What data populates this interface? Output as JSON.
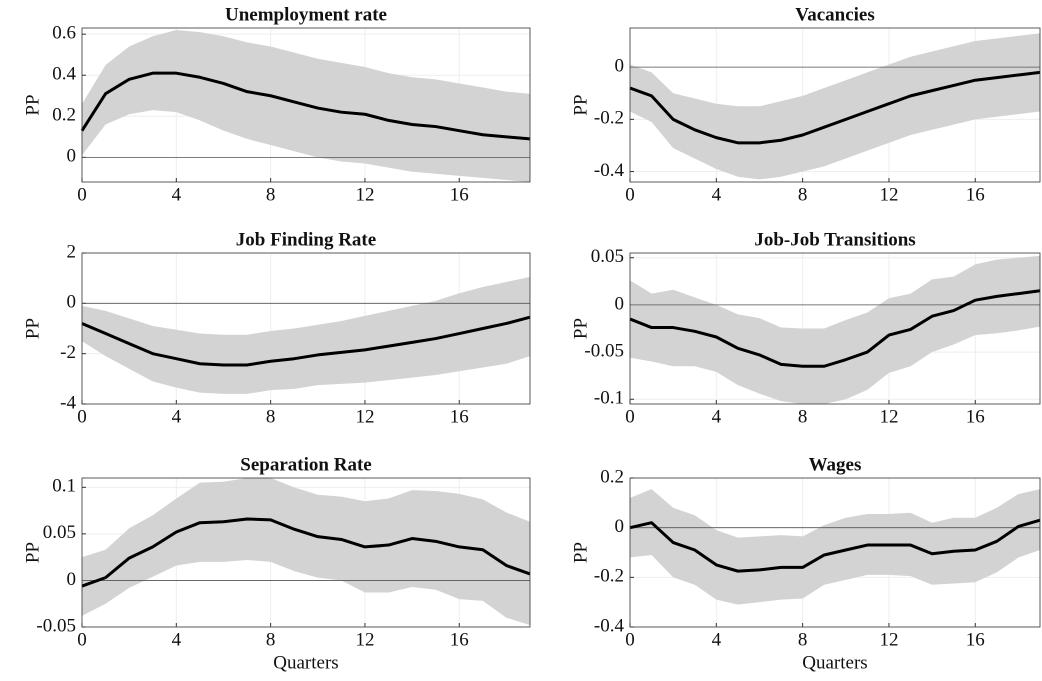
{
  "chart_data": [
    {
      "type": "line",
      "title": "Unemployment rate",
      "ylabel": "PP",
      "x": [
        0,
        1,
        2,
        3,
        4,
        5,
        6,
        7,
        8,
        9,
        10,
        11,
        12,
        13,
        14,
        15,
        16,
        17,
        18,
        19
      ],
      "series": [
        {
          "color": "#000000",
          "values": [
            0.13,
            0.31,
            0.38,
            0.41,
            0.41,
            0.39,
            0.36,
            0.32,
            0.3,
            0.27,
            0.24,
            0.22,
            0.21,
            0.18,
            0.16,
            0.15,
            0.13,
            0.11,
            0.1,
            0.09
          ]
        }
      ],
      "band": {
        "color": "#d3d3d3",
        "lower": [
          0.01,
          0.16,
          0.21,
          0.23,
          0.22,
          0.18,
          0.13,
          0.09,
          0.06,
          0.03,
          0.0,
          -0.02,
          -0.03,
          -0.05,
          -0.07,
          -0.08,
          -0.09,
          -0.1,
          -0.11,
          -0.12
        ],
        "upper": [
          0.26,
          0.45,
          0.54,
          0.59,
          0.62,
          0.61,
          0.59,
          0.56,
          0.54,
          0.51,
          0.48,
          0.46,
          0.44,
          0.41,
          0.39,
          0.38,
          0.36,
          0.34,
          0.32,
          0.31
        ]
      },
      "xlim": [
        0,
        19
      ],
      "xticks": [
        0,
        4,
        8,
        12,
        16
      ],
      "ylim": [
        -0.12,
        0.63
      ],
      "yticks": [
        0,
        0.2,
        0.4,
        0.6
      ],
      "grid": true
    },
    {
      "type": "line",
      "title": "Vacancies",
      "ylabel": "PP",
      "x": [
        0,
        1,
        2,
        3,
        4,
        5,
        6,
        7,
        8,
        9,
        10,
        11,
        12,
        13,
        14,
        15,
        16,
        17,
        18,
        19
      ],
      "series": [
        {
          "color": "#000000",
          "values": [
            -0.08,
            -0.11,
            -0.2,
            -0.24,
            -0.27,
            -0.29,
            -0.29,
            -0.28,
            -0.26,
            -0.23,
            -0.2,
            -0.17,
            -0.14,
            -0.11,
            -0.09,
            -0.07,
            -0.05,
            -0.04,
            -0.03,
            -0.02
          ]
        }
      ],
      "band": {
        "color": "#d3d3d3",
        "lower": [
          -0.17,
          -0.21,
          -0.31,
          -0.35,
          -0.39,
          -0.42,
          -0.43,
          -0.42,
          -0.4,
          -0.38,
          -0.35,
          -0.32,
          -0.29,
          -0.26,
          -0.24,
          -0.22,
          -0.2,
          -0.19,
          -0.18,
          -0.17
        ],
        "upper": [
          0.01,
          -0.02,
          -0.1,
          -0.12,
          -0.14,
          -0.15,
          -0.15,
          -0.13,
          -0.11,
          -0.08,
          -0.05,
          -0.02,
          0.01,
          0.04,
          0.06,
          0.08,
          0.1,
          0.11,
          0.12,
          0.13
        ]
      },
      "xlim": [
        0,
        19
      ],
      "xticks": [
        0,
        4,
        8,
        12,
        16
      ],
      "ylim": [
        -0.44,
        0.15
      ],
      "yticks": [
        -0.4,
        -0.2,
        0
      ],
      "grid": true
    },
    {
      "type": "line",
      "title": "Job Finding Rate",
      "ylabel": "PP",
      "x": [
        0,
        1,
        2,
        3,
        4,
        5,
        6,
        7,
        8,
        9,
        10,
        11,
        12,
        13,
        14,
        15,
        16,
        17,
        18,
        19
      ],
      "series": [
        {
          "color": "#000000",
          "values": [
            -0.8,
            -1.2,
            -1.6,
            -2.0,
            -2.2,
            -2.4,
            -2.45,
            -2.45,
            -2.3,
            -2.2,
            -2.05,
            -1.95,
            -1.85,
            -1.7,
            -1.55,
            -1.4,
            -1.2,
            -1.0,
            -0.8,
            -0.55
          ]
        }
      ],
      "band": {
        "color": "#d3d3d3",
        "lower": [
          -1.5,
          -2.1,
          -2.6,
          -3.1,
          -3.35,
          -3.55,
          -3.6,
          -3.6,
          -3.45,
          -3.4,
          -3.25,
          -3.2,
          -3.15,
          -3.05,
          -2.95,
          -2.85,
          -2.7,
          -2.55,
          -2.4,
          -2.1
        ],
        "upper": [
          -0.1,
          -0.3,
          -0.6,
          -0.9,
          -1.05,
          -1.2,
          -1.25,
          -1.25,
          -1.1,
          -1.0,
          -0.85,
          -0.7,
          -0.5,
          -0.3,
          -0.1,
          0.1,
          0.4,
          0.65,
          0.85,
          1.05
        ]
      },
      "xlim": [
        0,
        19
      ],
      "xticks": [
        0,
        4,
        8,
        12,
        16
      ],
      "ylim": [
        -4,
        2
      ],
      "yticks": [
        -4,
        -2,
        0,
        2
      ],
      "grid": true
    },
    {
      "type": "line",
      "title": "Job-Job Transitions",
      "ylabel": "PP",
      "x": [
        0,
        1,
        2,
        3,
        4,
        5,
        6,
        7,
        8,
        9,
        10,
        11,
        12,
        13,
        14,
        15,
        16,
        17,
        18,
        19
      ],
      "series": [
        {
          "color": "#000000",
          "values": [
            -0.015,
            -0.024,
            -0.024,
            -0.028,
            -0.034,
            -0.046,
            -0.053,
            -0.063,
            -0.065,
            -0.065,
            -0.058,
            -0.05,
            -0.032,
            -0.026,
            -0.012,
            -0.006,
            0.005,
            0.009,
            0.012,
            0.015
          ]
        }
      ],
      "band": {
        "color": "#d3d3d3",
        "lower": [
          -0.056,
          -0.06,
          -0.065,
          -0.065,
          -0.071,
          -0.085,
          -0.094,
          -0.102,
          -0.105,
          -0.105,
          -0.1,
          -0.09,
          -0.072,
          -0.065,
          -0.05,
          -0.042,
          -0.032,
          -0.03,
          -0.027,
          -0.023
        ],
        "upper": [
          0.026,
          0.012,
          0.016,
          0.008,
          0.0,
          -0.01,
          -0.014,
          -0.024,
          -0.025,
          -0.025,
          -0.016,
          -0.008,
          0.007,
          0.012,
          0.027,
          0.03,
          0.043,
          0.048,
          0.05,
          0.052
        ]
      },
      "xlim": [
        0,
        19
      ],
      "xticks": [
        0,
        4,
        8,
        12,
        16
      ],
      "ylim": [
        -0.105,
        0.055
      ],
      "yticks": [
        -0.1,
        -0.05,
        0,
        0.05
      ],
      "grid": true
    },
    {
      "type": "line",
      "title": "Separation Rate",
      "ylabel": "PP",
      "xlabel": "Quarters",
      "x": [
        0,
        1,
        2,
        3,
        4,
        5,
        6,
        7,
        8,
        9,
        10,
        11,
        12,
        13,
        14,
        15,
        16,
        17,
        18,
        19
      ],
      "series": [
        {
          "color": "#000000",
          "values": [
            -0.006,
            0.003,
            0.024,
            0.036,
            0.052,
            0.062,
            0.063,
            0.066,
            0.065,
            0.055,
            0.047,
            0.044,
            0.036,
            0.038,
            0.045,
            0.042,
            0.036,
            0.033,
            0.016,
            0.007
          ]
        }
      ],
      "band": {
        "color": "#d3d3d3",
        "lower": [
          -0.038,
          -0.025,
          -0.008,
          0.004,
          0.016,
          0.02,
          0.02,
          0.022,
          0.02,
          0.01,
          0.003,
          0.0,
          -0.013,
          -0.013,
          -0.007,
          -0.01,
          -0.02,
          -0.022,
          -0.04,
          -0.048
        ],
        "upper": [
          0.025,
          0.033,
          0.056,
          0.07,
          0.088,
          0.105,
          0.106,
          0.11,
          0.11,
          0.1,
          0.092,
          0.09,
          0.085,
          0.088,
          0.097,
          0.096,
          0.093,
          0.087,
          0.073,
          0.063
        ]
      },
      "xlim": [
        0,
        19
      ],
      "xticks": [
        0,
        4,
        8,
        12,
        16
      ],
      "ylim": [
        -0.05,
        0.11
      ],
      "yticks": [
        -0.05,
        0,
        0.05,
        0.1
      ],
      "grid": true
    },
    {
      "type": "line",
      "title": "Wages",
      "ylabel": "PP",
      "xlabel": "Quarters",
      "x": [
        0,
        1,
        2,
        3,
        4,
        5,
        6,
        7,
        8,
        9,
        10,
        11,
        12,
        13,
        14,
        15,
        16,
        17,
        18,
        19
      ],
      "series": [
        {
          "color": "#000000",
          "values": [
            0.0,
            0.02,
            -0.06,
            -0.09,
            -0.15,
            -0.175,
            -0.17,
            -0.16,
            -0.16,
            -0.11,
            -0.09,
            -0.07,
            -0.07,
            -0.07,
            -0.105,
            -0.095,
            -0.09,
            -0.055,
            0.005,
            0.03
          ]
        }
      ],
      "band": {
        "color": "#d3d3d3",
        "lower": [
          -0.12,
          -0.11,
          -0.2,
          -0.23,
          -0.29,
          -0.31,
          -0.3,
          -0.29,
          -0.285,
          -0.23,
          -0.21,
          -0.19,
          -0.19,
          -0.195,
          -0.23,
          -0.225,
          -0.22,
          -0.18,
          -0.12,
          -0.09
        ],
        "upper": [
          0.12,
          0.155,
          0.08,
          0.05,
          -0.01,
          -0.04,
          -0.035,
          -0.03,
          -0.035,
          0.01,
          0.04,
          0.055,
          0.055,
          0.06,
          0.02,
          0.04,
          0.04,
          0.08,
          0.135,
          0.155
        ]
      },
      "xlim": [
        0,
        19
      ],
      "xticks": [
        0,
        4,
        8,
        12,
        16
      ],
      "ylim": [
        -0.4,
        0.2
      ],
      "yticks": [
        -0.4,
        -0.2,
        0,
        0.2
      ],
      "grid": true
    }
  ]
}
